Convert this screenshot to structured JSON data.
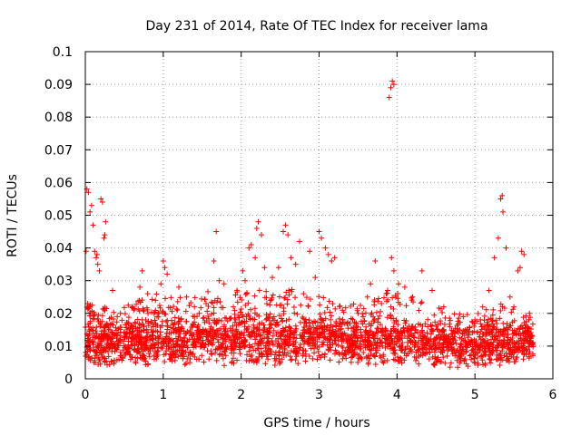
{
  "chart_data": {
    "type": "scatter",
    "title": "Day 231 of 2014, Rate Of TEC Index for receiver lama",
    "xlabel": "GPS time / hours",
    "ylabel": "ROTI / TECUs",
    "xlim": [
      0,
      6
    ],
    "ylim": [
      0,
      0.1
    ],
    "xticks": [
      "0",
      "1",
      "2",
      "3",
      "4",
      "5",
      "6"
    ],
    "yticks": [
      "0",
      "0.01",
      "0.02",
      "0.03",
      "0.04",
      "0.05",
      "0.06",
      "0.07",
      "0.08",
      "0.09",
      "0.1"
    ],
    "grid": true,
    "marker": "+",
    "color": "#ff0000",
    "series": [
      {
        "name": "ROTI",
        "points": [
          [
            0.02,
            0.058
          ],
          [
            0.04,
            0.057
          ],
          [
            0.06,
            0.051
          ],
          [
            0.08,
            0.053
          ],
          [
            0.1,
            0.047
          ],
          [
            0.12,
            0.039
          ],
          [
            0.14,
            0.037
          ],
          [
            0.16,
            0.035
          ],
          [
            0.18,
            0.033
          ],
          [
            0.2,
            0.055
          ],
          [
            0.22,
            0.054
          ],
          [
            0.24,
            0.043
          ],
          [
            0.26,
            0.048
          ],
          [
            0.01,
            0.039
          ],
          [
            0.03,
            0.023
          ],
          [
            0.05,
            0.022
          ],
          [
            0.15,
            0.038
          ],
          [
            0.25,
            0.044
          ],
          [
            0.35,
            0.027
          ],
          [
            0.45,
            0.02
          ],
          [
            0.6,
            0.022
          ],
          [
            0.7,
            0.028
          ],
          [
            0.73,
            0.033
          ],
          [
            0.8,
            0.026
          ],
          [
            0.9,
            0.024
          ],
          [
            0.97,
            0.029
          ],
          [
            1.0,
            0.036
          ],
          [
            1.02,
            0.034
          ],
          [
            1.05,
            0.032
          ],
          [
            1.2,
            0.028
          ],
          [
            1.3,
            0.025
          ],
          [
            1.4,
            0.022
          ],
          [
            1.55,
            0.023
          ],
          [
            1.65,
            0.036
          ],
          [
            1.68,
            0.045
          ],
          [
            1.72,
            0.03
          ],
          [
            1.78,
            0.029
          ],
          [
            1.9,
            0.022
          ],
          [
            2.02,
            0.033
          ],
          [
            2.05,
            0.03
          ],
          [
            2.1,
            0.04
          ],
          [
            2.13,
            0.041
          ],
          [
            2.18,
            0.037
          ],
          [
            2.2,
            0.046
          ],
          [
            2.22,
            0.048
          ],
          [
            2.26,
            0.044
          ],
          [
            2.3,
            0.034
          ],
          [
            2.4,
            0.031
          ],
          [
            2.48,
            0.034
          ],
          [
            2.54,
            0.045
          ],
          [
            2.57,
            0.047
          ],
          [
            2.6,
            0.044
          ],
          [
            2.64,
            0.037
          ],
          [
            2.7,
            0.035
          ],
          [
            2.75,
            0.042
          ],
          [
            2.8,
            0.026
          ],
          [
            2.88,
            0.039
          ],
          [
            2.95,
            0.031
          ],
          [
            3.0,
            0.045
          ],
          [
            3.03,
            0.043
          ],
          [
            3.08,
            0.04
          ],
          [
            3.12,
            0.038
          ],
          [
            3.16,
            0.036
          ],
          [
            3.2,
            0.037
          ],
          [
            3.3,
            0.021
          ],
          [
            3.5,
            0.02
          ],
          [
            3.62,
            0.025
          ],
          [
            3.66,
            0.029
          ],
          [
            3.72,
            0.036
          ],
          [
            3.8,
            0.023
          ],
          [
            3.88,
            0.027
          ],
          [
            3.9,
            0.086
          ],
          [
            3.92,
            0.089
          ],
          [
            3.94,
            0.091
          ],
          [
            3.96,
            0.09
          ],
          [
            3.93,
            0.037
          ],
          [
            3.96,
            0.033
          ],
          [
            4.02,
            0.029
          ],
          [
            4.1,
            0.028
          ],
          [
            4.2,
            0.025
          ],
          [
            4.32,
            0.033
          ],
          [
            4.45,
            0.027
          ],
          [
            4.6,
            0.022
          ],
          [
            4.85,
            0.019
          ],
          [
            5.0,
            0.018
          ],
          [
            5.1,
            0.022
          ],
          [
            5.18,
            0.027
          ],
          [
            5.25,
            0.037
          ],
          [
            5.3,
            0.043
          ],
          [
            5.33,
            0.055
          ],
          [
            5.35,
            0.056
          ],
          [
            5.36,
            0.051
          ],
          [
            5.4,
            0.04
          ],
          [
            5.45,
            0.025
          ],
          [
            5.5,
            0.022
          ],
          [
            5.55,
            0.033
          ],
          [
            5.58,
            0.034
          ],
          [
            5.6,
            0.039
          ],
          [
            5.63,
            0.038
          ],
          [
            5.7,
            0.02
          ]
        ],
        "band_envelope_hours_vs_roti": [
          [
            0.0,
            0.004,
            0.024
          ],
          [
            0.3,
            0.004,
            0.022
          ],
          [
            0.5,
            0.005,
            0.022
          ],
          [
            0.8,
            0.004,
            0.025
          ],
          [
            1.0,
            0.005,
            0.027
          ],
          [
            1.3,
            0.004,
            0.024
          ],
          [
            1.6,
            0.005,
            0.027
          ],
          [
            1.8,
            0.004,
            0.025
          ],
          [
            2.0,
            0.005,
            0.028
          ],
          [
            2.3,
            0.004,
            0.027
          ],
          [
            2.6,
            0.004,
            0.028
          ],
          [
            2.9,
            0.005,
            0.026
          ],
          [
            3.0,
            0.004,
            0.027
          ],
          [
            3.3,
            0.005,
            0.023
          ],
          [
            3.6,
            0.004,
            0.023
          ],
          [
            3.9,
            0.005,
            0.027
          ],
          [
            4.2,
            0.004,
            0.025
          ],
          [
            4.5,
            0.004,
            0.022
          ],
          [
            4.8,
            0.003,
            0.02
          ],
          [
            5.0,
            0.004,
            0.02
          ],
          [
            5.3,
            0.004,
            0.023
          ],
          [
            5.5,
            0.005,
            0.022
          ],
          [
            5.75,
            0.006,
            0.019
          ]
        ]
      }
    ]
  }
}
